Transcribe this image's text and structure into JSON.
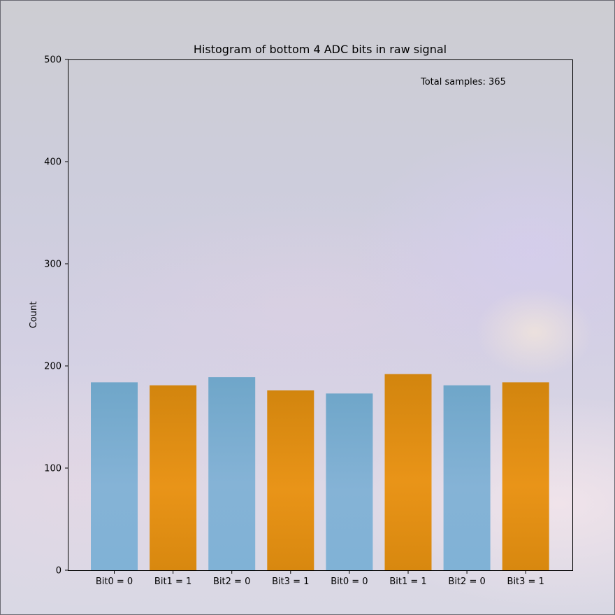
{
  "chart_data": {
    "type": "bar",
    "title": "Histogram of bottom 4 ADC bits in raw signal",
    "xlabel": "",
    "ylabel": "Count",
    "ylim": [
      0,
      500
    ],
    "yticks": [
      0,
      100,
      200,
      300,
      400,
      500
    ],
    "categories": [
      "Bit0 = 0",
      "Bit1 = 1",
      "Bit2 = 0",
      "Bit3 = 1",
      "Bit0 = 0",
      "Bit1 = 1",
      "Bit2 = 0",
      "Bit3 = 1"
    ],
    "values": [
      184,
      181,
      189,
      176,
      173,
      192,
      181,
      184
    ],
    "bar_colors": [
      "#7ab0d4",
      "#e38f1a",
      "#7ab0d4",
      "#e38f1a",
      "#7ab0d4",
      "#e38f1a",
      "#7ab0d4",
      "#e38f1a"
    ],
    "annotation": "Total samples: 365",
    "grid": false,
    "legend": "none"
  }
}
